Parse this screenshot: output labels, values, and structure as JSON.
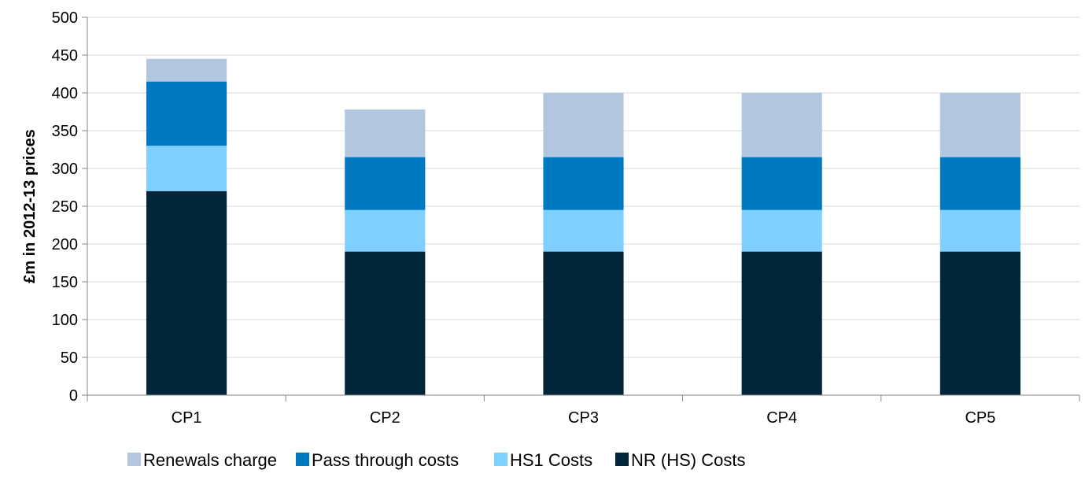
{
  "chart_data": {
    "type": "bar",
    "stacked": true,
    "title": "",
    "xlabel": "",
    "ylabel": "£m in 2012-13 prices",
    "ylim": [
      0,
      500
    ],
    "yticks": [
      0,
      50,
      100,
      150,
      200,
      250,
      300,
      350,
      400,
      450,
      500
    ],
    "grid": "horizontal",
    "legend_position": "bottom",
    "categories": [
      "CP1",
      "CP2",
      "CP3",
      "CP4",
      "CP5"
    ],
    "series": [
      {
        "name": "NR (HS) Costs",
        "color": "#012639",
        "values": [
          270,
          190,
          190,
          190,
          190
        ]
      },
      {
        "name": "HS1 Costs",
        "color": "#80d0ff",
        "values": [
          60,
          55,
          55,
          55,
          55
        ]
      },
      {
        "name": "Pass through costs",
        "color": "#0079c1",
        "values": [
          85,
          70,
          70,
          70,
          70
        ]
      },
      {
        "name": "Renewals charge",
        "color": "#b2c6e0",
        "values": [
          30,
          63,
          85,
          85,
          85
        ]
      }
    ],
    "legend_order": [
      "Renewals charge",
      "Pass through costs",
      "HS1 Costs",
      "NR (HS) Costs"
    ]
  }
}
